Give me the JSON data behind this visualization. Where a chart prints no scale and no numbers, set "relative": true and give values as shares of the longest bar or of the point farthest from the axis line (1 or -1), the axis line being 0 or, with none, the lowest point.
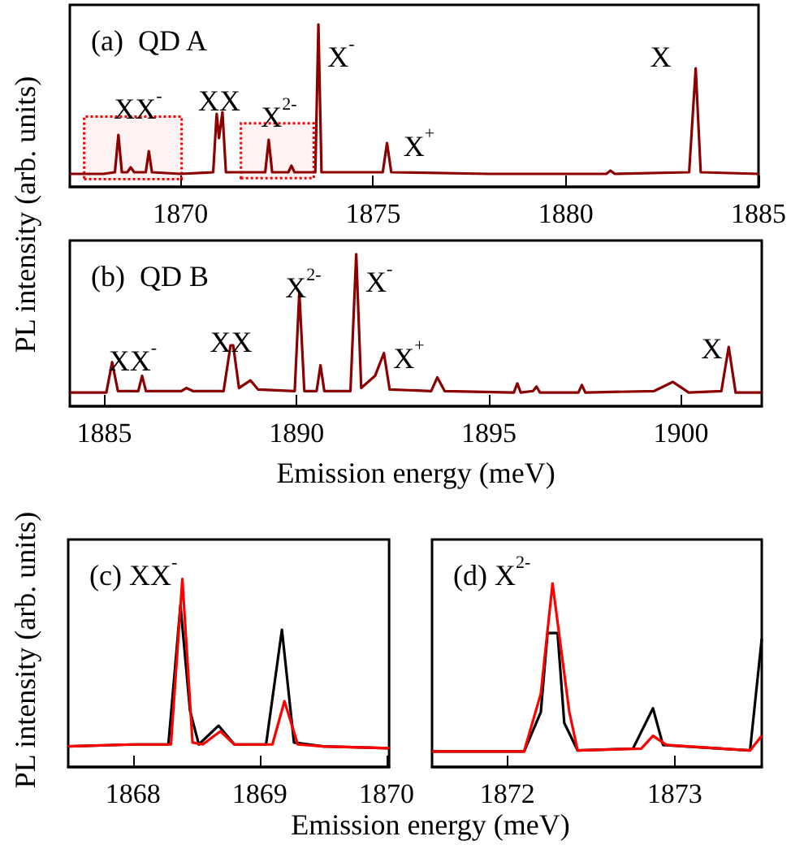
{
  "chart_data": [
    {
      "type": "line",
      "title": "(a)  QD A",
      "ylabel": "PL intensity (arb. units)",
      "relative": true,
      "xlim": [
        1867.13,
        1885
      ],
      "xticks": [
        1870,
        1875,
        1880,
        1885
      ],
      "series": [
        {
          "color": "#8b0000",
          "x": [
            1867.13,
            1868.0,
            1868.3,
            1868.39,
            1868.48,
            1868.62,
            1868.71,
            1868.8,
            1869.1,
            1869.18,
            1869.26,
            1870.0,
            1870.85,
            1870.94,
            1871.0,
            1871.09,
            1871.18,
            1872.2,
            1872.29,
            1872.38,
            1872.8,
            1872.88,
            1872.96,
            1873.5,
            1873.58,
            1873.66,
            1875.25,
            1875.36,
            1875.47,
            1878.0,
            1881.05,
            1881.16,
            1881.27,
            1883.2,
            1883.37,
            1883.5,
            1885.0
          ],
          "values": [
            0.08,
            0.08,
            0.09,
            0.32,
            0.09,
            0.09,
            0.12,
            0.09,
            0.09,
            0.22,
            0.09,
            0.08,
            0.09,
            0.45,
            0.3,
            0.46,
            0.09,
            0.09,
            0.29,
            0.09,
            0.09,
            0.13,
            0.09,
            0.09,
            1.0,
            0.09,
            0.09,
            0.27,
            0.09,
            0.08,
            0.08,
            0.1,
            0.08,
            0.09,
            0.73,
            0.09,
            0.08
          ]
        }
      ],
      "annotations": [
        "XX$^{-}$",
        "XX",
        "X$^{2-}$",
        "X$^{-}$",
        "X$^{+}$",
        "X"
      ],
      "bands": [
        {
          "axis": "x",
          "from": 1867.5,
          "to": 1870.03,
          "color": "#ff0000"
        },
        {
          "axis": "x",
          "from": 1871.57,
          "to": 1873.46,
          "color": "#ff0000"
        }
      ]
    },
    {
      "type": "line",
      "title": "(b)  QD B",
      "xlabel": "Emission energy (meV)",
      "relative": true,
      "xlim": [
        1884.1,
        1902.1
      ],
      "xticks": [
        1885,
        1890,
        1895,
        1900
      ],
      "series": [
        {
          "color": "#8b0000",
          "x": [
            1884.1,
            1885.05,
            1885.2,
            1885.35,
            1885.88,
            1885.98,
            1886.08,
            1887.0,
            1887.13,
            1887.3,
            1888.1,
            1888.28,
            1888.35,
            1888.5,
            1888.8,
            1889.0,
            1889.95,
            1890.07,
            1890.2,
            1890.52,
            1890.62,
            1890.72,
            1891.4,
            1891.55,
            1891.68,
            1892.04,
            1892.27,
            1892.42,
            1893.5,
            1893.66,
            1893.85,
            1895.65,
            1895.74,
            1895.83,
            1896.15,
            1896.24,
            1896.33,
            1897.33,
            1897.42,
            1897.51,
            1899.3,
            1899.79,
            1900.2,
            1901.05,
            1901.24,
            1901.42,
            1902.1
          ],
          "values": [
            0.09,
            0.09,
            0.29,
            0.1,
            0.1,
            0.2,
            0.1,
            0.1,
            0.12,
            0.1,
            0.1,
            0.4,
            0.4,
            0.12,
            0.17,
            0.11,
            0.1,
            0.75,
            0.1,
            0.1,
            0.27,
            0.1,
            0.1,
            1.0,
            0.12,
            0.2,
            0.35,
            0.11,
            0.1,
            0.19,
            0.1,
            0.09,
            0.15,
            0.09,
            0.1,
            0.13,
            0.09,
            0.09,
            0.14,
            0.09,
            0.1,
            0.16,
            0.09,
            0.1,
            0.39,
            0.09,
            0.09
          ]
        }
      ],
      "annotations": [
        "XX$^{-}$",
        "XX",
        "X$^{2-}$",
        "X$^{-}$",
        "X$^{+}$",
        "X"
      ]
    },
    {
      "type": "line",
      "title": "(c) XX$^{-}$",
      "xlabel": "Emission energy (meV)",
      "ylabel": "PL intensity (arb. units)",
      "relative": true,
      "xlim": [
        1867.49,
        1870.02
      ],
      "xticks": [
        1868,
        1869,
        1870
      ],
      "series": [
        {
          "color": "#000000",
          "x": [
            1867.49,
            1868.0,
            1868.28,
            1868.375,
            1868.45,
            1868.52,
            1868.675,
            1868.8,
            1869.05,
            1869.175,
            1869.27,
            1869.5,
            1870.02
          ],
          "values": [
            0.11,
            0.12,
            0.12,
            0.86,
            0.3,
            0.12,
            0.22,
            0.12,
            0.12,
            0.73,
            0.13,
            0.11,
            0.1
          ]
        },
        {
          "color": "#ff0000",
          "x": [
            1867.49,
            1868.0,
            1868.3,
            1868.39,
            1868.47,
            1868.55,
            1868.69,
            1868.8,
            1869.1,
            1869.195,
            1869.3,
            1869.5,
            1870.02
          ],
          "values": [
            0.11,
            0.12,
            0.12,
            1.0,
            0.13,
            0.12,
            0.19,
            0.12,
            0.12,
            0.35,
            0.12,
            0.11,
            0.1
          ]
        }
      ]
    },
    {
      "type": "line",
      "title": "(d) X$^{2-}$",
      "relative": true,
      "xlim": [
        1871.55,
        1873.52
      ],
      "xticks": [
        1872,
        1873
      ],
      "series": [
        {
          "color": "#000000",
          "x": [
            1871.55,
            1872.1,
            1872.2,
            1872.24,
            1872.3,
            1872.34,
            1872.42,
            1872.75,
            1872.87,
            1872.93,
            1873.1,
            1873.45,
            1873.52
          ],
          "values": [
            0.085,
            0.085,
            0.3,
            0.73,
            0.73,
            0.24,
            0.09,
            0.1,
            0.32,
            0.12,
            0.11,
            0.09,
            0.7
          ]
        },
        {
          "color": "#ff0000",
          "x": [
            1871.55,
            1872.1,
            1872.2,
            1872.27,
            1872.37,
            1872.42,
            1872.8,
            1872.87,
            1872.95,
            1873.45,
            1873.52
          ],
          "values": [
            0.085,
            0.085,
            0.4,
            1.0,
            0.3,
            0.09,
            0.1,
            0.17,
            0.12,
            0.09,
            0.17
          ]
        }
      ]
    }
  ]
}
